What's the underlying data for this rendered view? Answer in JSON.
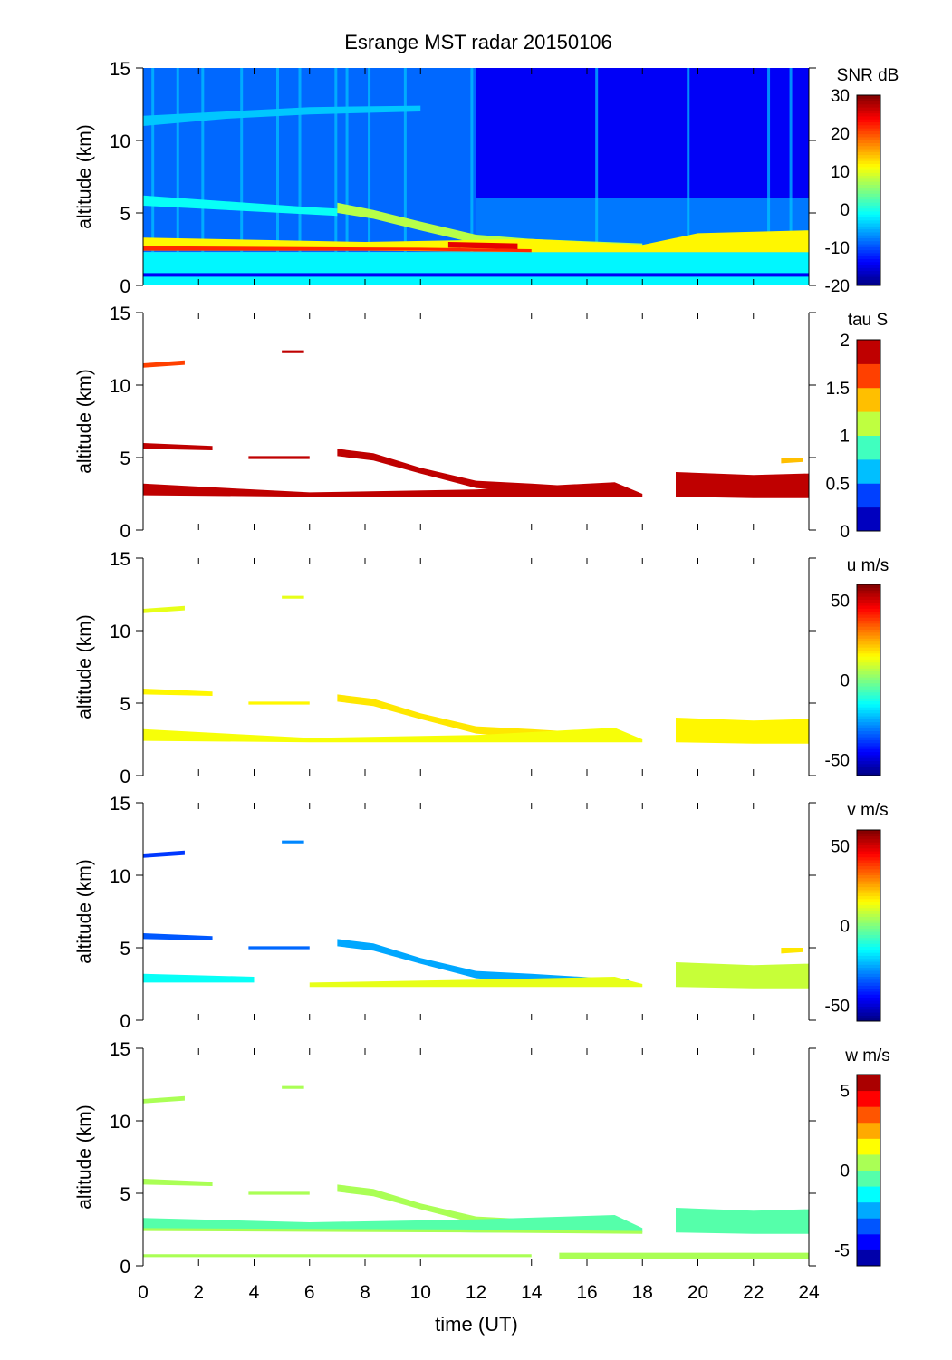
{
  "chart_data": {
    "type": "heatmap",
    "title": "Esrange MST radar 20150106",
    "xlabel": "time (UT)",
    "xlim": [
      0,
      24
    ],
    "xticks": [
      0,
      2,
      4,
      6,
      8,
      10,
      12,
      14,
      16,
      18,
      20,
      22,
      24
    ],
    "ylabel": "altitude (km)",
    "ylim": [
      0,
      15
    ],
    "yticks": [
      0,
      5,
      10,
      15
    ],
    "panels": [
      {
        "name": "snr",
        "colorbar_label": "SNR dB",
        "clim": [
          -20,
          30
        ],
        "cticks": [
          30,
          20,
          10,
          0,
          -10,
          -20
        ],
        "levels": 64,
        "regions": [
          {
            "t": [
              0,
              24
            ],
            "z": [
              0,
              2.3
            ],
            "value": -2
          },
          {
            "t": [
              0,
              24
            ],
            "z": [
              0.6,
              0.85
            ],
            "value": -14
          },
          {
            "t": [
              0,
              12
            ],
            "z": [
              2.3,
              15
            ],
            "value": -9
          },
          {
            "t": [
              12,
              24
            ],
            "z": [
              6,
              15
            ],
            "value": -14
          },
          {
            "t": [
              12,
              24
            ],
            "z": [
              2.3,
              6
            ],
            "value": -8
          }
        ],
        "streaks": {
          "value": -4,
          "z": [
            2.3,
            15
          ],
          "times": [
            0.3,
            1.2,
            2.1,
            3.5,
            4.8,
            5.6,
            6.9,
            7.3,
            8.1,
            9.4,
            11.8,
            16.3,
            19.6,
            22.5,
            23.3
          ]
        },
        "layers": [
          {
            "value": -4,
            "points": [
              [
                0,
                11.0,
                11.7
              ],
              [
                3,
                11.5,
                12.0
              ],
              [
                6,
                11.8,
                12.3
              ],
              [
                10,
                12.0,
                12.4
              ]
            ]
          },
          {
            "value": -1,
            "points": [
              [
                0,
                5.5,
                6.2
              ],
              [
                3,
                5.2,
                5.8
              ],
              [
                6,
                4.9,
                5.4
              ],
              [
                7,
                4.8,
                5.3
              ]
            ]
          },
          {
            "value": 8,
            "points": [
              [
                7,
                5.0,
                5.7
              ],
              [
                8.3,
                4.6,
                5.2
              ],
              [
                10,
                3.8,
                4.4
              ],
              [
                12,
                2.9,
                3.5
              ],
              [
                14,
                2.6,
                3.2
              ],
              [
                18,
                2.4,
                2.9
              ]
            ]
          },
          {
            "value": 12,
            "points": [
              [
                0,
                2.4,
                3.3
              ],
              [
                8,
                2.4,
                3.0
              ],
              [
                14,
                2.3,
                3.2
              ],
              [
                18,
                2.3,
                2.8
              ],
              [
                20,
                2.3,
                3.6
              ],
              [
                24,
                2.3,
                3.8
              ]
            ]
          },
          {
            "value": 22,
            "points": [
              [
                0,
                2.4,
                2.7
              ],
              [
                10,
                2.4,
                2.6
              ],
              [
                14,
                2.3,
                2.5
              ]
            ]
          },
          {
            "value": 25,
            "points": [
              [
                11,
                2.6,
                3.0
              ],
              [
                13.5,
                2.5,
                2.9
              ]
            ]
          }
        ]
      },
      {
        "name": "tau",
        "colorbar_label": "tau S",
        "clim": [
          0,
          2
        ],
        "cticks": [
          2,
          1.5,
          1,
          0.5,
          0
        ],
        "levels": 8,
        "regions": [],
        "layers": [
          {
            "value": 1.6,
            "points": [
              [
                0,
                11.2,
                11.5
              ],
              [
                1.5,
                11.4,
                11.7
              ]
            ]
          },
          {
            "value": 1.9,
            "points": [
              [
                5,
                12.2,
                12.4
              ],
              [
                5.8,
                12.2,
                12.4
              ]
            ]
          },
          {
            "value": 1.9,
            "points": [
              [
                0,
                5.6,
                6.0
              ],
              [
                2.5,
                5.5,
                5.8
              ]
            ]
          },
          {
            "value": 1.9,
            "points": [
              [
                3.8,
                4.9,
                5.1
              ],
              [
                6,
                4.9,
                5.1
              ]
            ]
          },
          {
            "value": 1.9,
            "points": [
              [
                7,
                5.1,
                5.6
              ],
              [
                8.3,
                4.8,
                5.3
              ],
              [
                10,
                3.9,
                4.3
              ],
              [
                12,
                2.9,
                3.4
              ],
              [
                14,
                2.6,
                3.2
              ],
              [
                17.5,
                2.4,
                2.8
              ]
            ]
          },
          {
            "value": 1.9,
            "points": [
              [
                0,
                2.4,
                3.2
              ],
              [
                6,
                2.3,
                2.6
              ],
              [
                12,
                2.3,
                2.8
              ],
              [
                17,
                2.3,
                3.3
              ],
              [
                18,
                2.3,
                2.5
              ]
            ]
          },
          {
            "value": 1.9,
            "points": [
              [
                19.2,
                2.3,
                4.0
              ],
              [
                22,
                2.2,
                3.8
              ],
              [
                24,
                2.2,
                3.9
              ]
            ]
          },
          {
            "value": 1.3,
            "points": [
              [
                23,
                4.6,
                5.0
              ],
              [
                23.8,
                4.7,
                5.0
              ]
            ]
          }
        ]
      },
      {
        "name": "u",
        "colorbar_label": "u m/s",
        "clim": [
          -60,
          60
        ],
        "cticks": [
          50,
          0,
          -50
        ],
        "levels": 64,
        "regions": [],
        "layers": [
          {
            "value": 12,
            "points": [
              [
                0,
                11.2,
                11.5
              ],
              [
                1.5,
                11.4,
                11.7
              ]
            ]
          },
          {
            "value": 12,
            "points": [
              [
                5,
                12.2,
                12.4
              ],
              [
                5.8,
                12.2,
                12.4
              ]
            ]
          },
          {
            "value": 15,
            "points": [
              [
                0,
                5.6,
                6.0
              ],
              [
                2.5,
                5.5,
                5.8
              ]
            ]
          },
          {
            "value": 15,
            "points": [
              [
                3.8,
                4.9,
                5.1
              ],
              [
                6,
                4.9,
                5.1
              ]
            ]
          },
          {
            "value": 18,
            "points": [
              [
                7,
                5.1,
                5.6
              ],
              [
                8.3,
                4.8,
                5.3
              ],
              [
                10,
                3.9,
                4.3
              ],
              [
                12,
                2.9,
                3.4
              ],
              [
                14,
                2.6,
                3.2
              ],
              [
                17.5,
                2.4,
                2.8
              ]
            ]
          },
          {
            "value": 14,
            "points": [
              [
                0,
                2.4,
                3.2
              ],
              [
                6,
                2.3,
                2.6
              ],
              [
                12,
                2.3,
                2.8
              ],
              [
                17,
                2.3,
                3.3
              ],
              [
                18,
                2.3,
                2.5
              ]
            ]
          },
          {
            "value": 16,
            "points": [
              [
                19.2,
                2.3,
                4.0
              ],
              [
                22,
                2.2,
                3.8
              ],
              [
                24,
                2.2,
                3.9
              ]
            ]
          }
        ]
      },
      {
        "name": "v",
        "colorbar_label": "v m/s",
        "clim": [
          -60,
          60
        ],
        "cticks": [
          50,
          0,
          -50
        ],
        "levels": 64,
        "regions": [],
        "layers": [
          {
            "value": -38,
            "points": [
              [
                0,
                11.2,
                11.5
              ],
              [
                1.5,
                11.4,
                11.7
              ]
            ]
          },
          {
            "value": -30,
            "points": [
              [
                5,
                12.2,
                12.4
              ],
              [
                5.8,
                12.2,
                12.4
              ]
            ]
          },
          {
            "value": -35,
            "points": [
              [
                0,
                5.6,
                6.0
              ],
              [
                2.5,
                5.5,
                5.8
              ]
            ]
          },
          {
            "value": -32,
            "points": [
              [
                3.8,
                4.9,
                5.1
              ],
              [
                6,
                4.9,
                5.1
              ]
            ]
          },
          {
            "value": -25,
            "points": [
              [
                7,
                5.1,
                5.6
              ],
              [
                8.3,
                4.8,
                5.3
              ],
              [
                10,
                3.9,
                4.3
              ],
              [
                12,
                2.9,
                3.4
              ],
              [
                14,
                2.6,
                3.2
              ],
              [
                17.5,
                2.4,
                2.8
              ]
            ]
          },
          {
            "value": -15,
            "points": [
              [
                0,
                2.6,
                3.2
              ],
              [
                4,
                2.6,
                3.0
              ]
            ]
          },
          {
            "value": 12,
            "points": [
              [
                6,
                2.3,
                2.6
              ],
              [
                12,
                2.3,
                2.8
              ],
              [
                17,
                2.3,
                3.0
              ],
              [
                18,
                2.3,
                2.5
              ]
            ]
          },
          {
            "value": 8,
            "points": [
              [
                19.2,
                2.3,
                4.0
              ],
              [
                22,
                2.2,
                3.8
              ],
              [
                24,
                2.2,
                3.9
              ]
            ]
          },
          {
            "value": 18,
            "points": [
              [
                23,
                4.6,
                5.0
              ],
              [
                23.8,
                4.7,
                5.0
              ]
            ]
          }
        ]
      },
      {
        "name": "w",
        "colorbar_label": "w m/s",
        "clim": [
          -6,
          6
        ],
        "cticks": [
          5,
          0,
          -5
        ],
        "levels": 12,
        "regions": [],
        "layers": [
          {
            "value": 0.6,
            "points": [
              [
                0,
                11.2,
                11.5
              ],
              [
                1.5,
                11.4,
                11.7
              ]
            ]
          },
          {
            "value": 0.6,
            "points": [
              [
                5,
                12.2,
                12.4
              ],
              [
                5.8,
                12.2,
                12.4
              ]
            ]
          },
          {
            "value": 0.4,
            "points": [
              [
                0,
                5.6,
                6.0
              ],
              [
                2.5,
                5.5,
                5.8
              ]
            ]
          },
          {
            "value": 0.3,
            "points": [
              [
                3.8,
                4.9,
                5.1
              ],
              [
                6,
                4.9,
                5.1
              ]
            ]
          },
          {
            "value": 0.5,
            "points": [
              [
                7,
                5.1,
                5.6
              ],
              [
                8.3,
                4.8,
                5.3
              ],
              [
                10,
                3.9,
                4.3
              ],
              [
                12,
                2.9,
                3.4
              ],
              [
                14,
                2.6,
                3.2
              ],
              [
                17.5,
                2.4,
                2.8
              ]
            ]
          },
          {
            "value": -0.4,
            "points": [
              [
                0,
                2.5,
                3.3
              ],
              [
                6,
                2.4,
                3.0
              ],
              [
                12,
                2.3,
                3.2
              ],
              [
                17,
                2.3,
                3.5
              ],
              [
                18,
                2.3,
                2.6
              ]
            ]
          },
          {
            "value": 0.6,
            "points": [
              [
                0,
                2.4,
                2.6
              ],
              [
                12,
                2.3,
                2.5
              ],
              [
                18,
                2.2,
                2.4
              ]
            ]
          },
          {
            "value": -0.6,
            "points": [
              [
                19.2,
                2.3,
                4.0
              ],
              [
                22,
                2.2,
                3.8
              ],
              [
                24,
                2.2,
                3.9
              ]
            ]
          },
          {
            "value": 0.8,
            "points": [
              [
                15,
                0.5,
                0.9
              ],
              [
                24,
                0.5,
                0.9
              ]
            ]
          },
          {
            "value": 0.7,
            "points": [
              [
                0,
                0.6,
                0.8
              ],
              [
                14,
                0.6,
                0.8
              ]
            ]
          }
        ]
      }
    ]
  }
}
